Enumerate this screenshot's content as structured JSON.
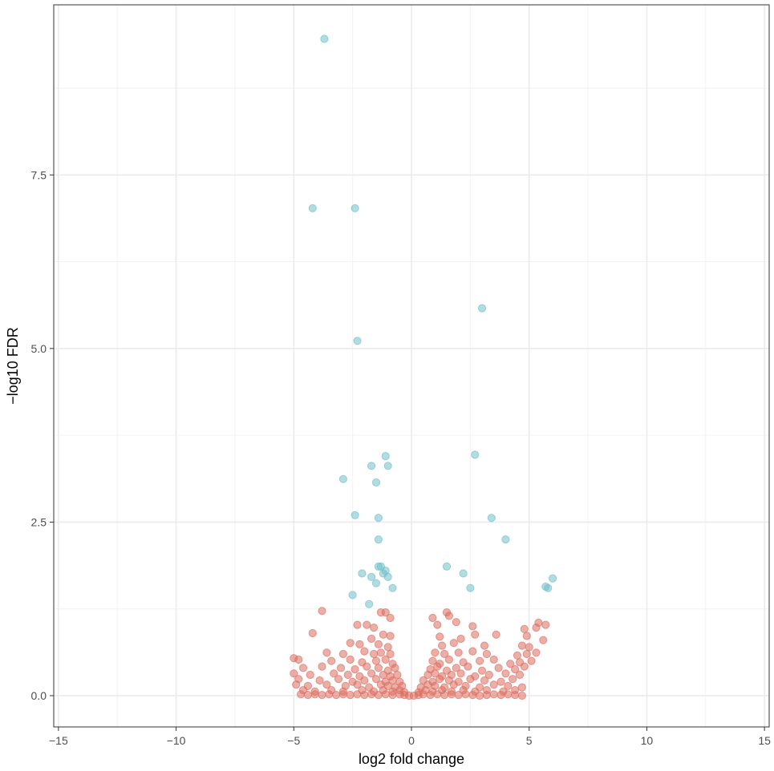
{
  "chart_data": {
    "type": "scatter",
    "title": "",
    "xlabel": "log2 fold change",
    "ylabel": "−log10 FDR",
    "xlim": [
      -15.2,
      15.2
    ],
    "ylim": [
      -0.45,
      9.95
    ],
    "xticks": [
      -15,
      -10,
      -5,
      0,
      5,
      10,
      15
    ],
    "xtick_labels": [
      "−15",
      "−10",
      "−5",
      "0",
      "5",
      "10",
      "15"
    ],
    "yticks": [
      0.0,
      2.5,
      5.0,
      7.5
    ],
    "ytick_labels": [
      "0.0",
      "2.5",
      "5.0",
      "7.5"
    ],
    "grid": true,
    "legend": "none",
    "colors": {
      "significant": "#6fbfca",
      "not_significant": "#dc6d5f"
    },
    "series": [
      {
        "color": "#6fbfca",
        "points": [
          [
            -3.7,
            9.46
          ],
          [
            -4.2,
            7.02
          ],
          [
            -2.4,
            7.02
          ],
          [
            3.0,
            5.58
          ],
          [
            -2.3,
            5.11
          ],
          [
            -1.1,
            3.45
          ],
          [
            2.7,
            3.47
          ],
          [
            -1.7,
            3.31
          ],
          [
            -1.0,
            3.31
          ],
          [
            -2.9,
            3.12
          ],
          [
            -1.5,
            3.07
          ],
          [
            -2.4,
            2.6
          ],
          [
            -1.4,
            2.56
          ],
          [
            3.4,
            2.56
          ],
          [
            4.0,
            2.25
          ],
          [
            -1.4,
            2.25
          ],
          [
            -1.3,
            1.86
          ],
          [
            -1.4,
            1.86
          ],
          [
            1.5,
            1.86
          ],
          [
            -1.1,
            1.8
          ],
          [
            -2.1,
            1.76
          ],
          [
            -1.2,
            1.76
          ],
          [
            -1.7,
            1.71
          ],
          [
            -1.0,
            1.71
          ],
          [
            2.2,
            1.76
          ],
          [
            6.0,
            1.69
          ],
          [
            -1.5,
            1.62
          ],
          [
            5.7,
            1.57
          ],
          [
            5.8,
            1.55
          ],
          [
            -0.8,
            1.55
          ],
          [
            2.5,
            1.55
          ],
          [
            -2.5,
            1.45
          ],
          [
            -1.8,
            1.32
          ]
        ]
      },
      {
        "color": "#dc6d5f",
        "points": [
          [
            -3.8,
            1.22
          ],
          [
            -1.3,
            1.2
          ],
          [
            -1.1,
            1.2
          ],
          [
            1.5,
            1.2
          ],
          [
            -0.9,
            1.12
          ],
          [
            1.6,
            1.15
          ],
          [
            -2.3,
            1.02
          ],
          [
            -1.9,
            1.02
          ],
          [
            -1.6,
            0.98
          ],
          [
            1.9,
            1.06
          ],
          [
            5.4,
            1.05
          ],
          [
            5.7,
            1.02
          ],
          [
            0.9,
            1.12
          ],
          [
            1.1,
            1.02
          ],
          [
            2.6,
            1.0
          ],
          [
            5.3,
            0.98
          ],
          [
            4.8,
            0.96
          ],
          [
            -4.2,
            0.9
          ],
          [
            -1.2,
            0.88
          ],
          [
            -0.9,
            0.86
          ],
          [
            2.7,
            0.88
          ],
          [
            3.6,
            0.88
          ],
          [
            -1.7,
            0.82
          ],
          [
            1.2,
            0.85
          ],
          [
            2.1,
            0.82
          ],
          [
            5.6,
            0.8
          ],
          [
            4.9,
            0.86
          ],
          [
            -2.6,
            0.76
          ],
          [
            -2.2,
            0.74
          ],
          [
            -1.4,
            0.74
          ],
          [
            -1.0,
            0.7
          ],
          [
            1.3,
            0.72
          ],
          [
            1.8,
            0.76
          ],
          [
            3.1,
            0.72
          ],
          [
            4.7,
            0.72
          ],
          [
            5.0,
            0.7
          ],
          [
            -3.6,
            0.62
          ],
          [
            -2.9,
            0.6
          ],
          [
            -2.0,
            0.64
          ],
          [
            -1.6,
            0.6
          ],
          [
            -1.3,
            0.62
          ],
          [
            -0.9,
            0.6
          ],
          [
            1.0,
            0.62
          ],
          [
            1.4,
            0.6
          ],
          [
            2.0,
            0.62
          ],
          [
            2.6,
            0.64
          ],
          [
            3.2,
            0.6
          ],
          [
            4.5,
            0.58
          ],
          [
            4.9,
            0.6
          ],
          [
            5.3,
            0.62
          ],
          [
            -5.0,
            0.54
          ],
          [
            -4.8,
            0.52
          ],
          [
            -3.4,
            0.5
          ],
          [
            -2.6,
            0.52
          ],
          [
            -2.1,
            0.48
          ],
          [
            -1.5,
            0.5
          ],
          [
            -1.1,
            0.52
          ],
          [
            -0.8,
            0.46
          ],
          [
            0.9,
            0.5
          ],
          [
            1.2,
            0.46
          ],
          [
            1.6,
            0.52
          ],
          [
            2.2,
            0.48
          ],
          [
            2.9,
            0.5
          ],
          [
            3.5,
            0.52
          ],
          [
            4.2,
            0.46
          ],
          [
            4.6,
            0.48
          ],
          [
            5.1,
            0.5
          ],
          [
            -4.6,
            0.4
          ],
          [
            -3.8,
            0.42
          ],
          [
            -3.0,
            0.4
          ],
          [
            -2.4,
            0.38
          ],
          [
            -1.9,
            0.42
          ],
          [
            -1.4,
            0.4
          ],
          [
            -1.0,
            0.36
          ],
          [
            -0.7,
            0.4
          ],
          [
            0.8,
            0.38
          ],
          [
            1.1,
            0.42
          ],
          [
            1.5,
            0.36
          ],
          [
            1.9,
            0.4
          ],
          [
            2.4,
            0.42
          ],
          [
            3.0,
            0.36
          ],
          [
            3.7,
            0.4
          ],
          [
            4.4,
            0.38
          ],
          [
            4.8,
            0.42
          ],
          [
            -5.0,
            0.32
          ],
          [
            -4.3,
            0.3
          ],
          [
            -3.3,
            0.32
          ],
          [
            -2.7,
            0.3
          ],
          [
            -2.2,
            0.28
          ],
          [
            -1.7,
            0.32
          ],
          [
            -1.2,
            0.3
          ],
          [
            -0.9,
            0.28
          ],
          [
            -0.6,
            0.3
          ],
          [
            0.7,
            0.3
          ],
          [
            1.0,
            0.32
          ],
          [
            1.3,
            0.28
          ],
          [
            1.7,
            0.3
          ],
          [
            2.1,
            0.32
          ],
          [
            2.7,
            0.28
          ],
          [
            3.3,
            0.3
          ],
          [
            4.0,
            0.32
          ],
          [
            4.6,
            0.3
          ],
          [
            -4.8,
            0.24
          ],
          [
            -3.9,
            0.22
          ],
          [
            -3.1,
            0.24
          ],
          [
            -2.5,
            0.2
          ],
          [
            -2.0,
            0.22
          ],
          [
            -1.5,
            0.24
          ],
          [
            -1.1,
            0.2
          ],
          [
            -0.8,
            0.22
          ],
          [
            -0.5,
            0.2
          ],
          [
            0.5,
            0.22
          ],
          [
            0.9,
            0.2
          ],
          [
            1.2,
            0.24
          ],
          [
            1.6,
            0.22
          ],
          [
            2.0,
            0.2
          ],
          [
            2.5,
            0.24
          ],
          [
            3.1,
            0.22
          ],
          [
            3.8,
            0.2
          ],
          [
            4.3,
            0.24
          ],
          [
            -4.9,
            0.16
          ],
          [
            -4.4,
            0.14
          ],
          [
            -3.6,
            0.16
          ],
          [
            -2.8,
            0.14
          ],
          [
            -2.3,
            0.16
          ],
          [
            -1.8,
            0.12
          ],
          [
            -1.3,
            0.16
          ],
          [
            -1.0,
            0.14
          ],
          [
            -0.7,
            0.12
          ],
          [
            -0.4,
            0.14
          ],
          [
            0.4,
            0.12
          ],
          [
            0.7,
            0.16
          ],
          [
            1.0,
            0.14
          ],
          [
            1.4,
            0.12
          ],
          [
            1.8,
            0.16
          ],
          [
            2.3,
            0.14
          ],
          [
            2.9,
            0.12
          ],
          [
            3.5,
            0.16
          ],
          [
            4.1,
            0.14
          ],
          [
            4.7,
            0.12
          ],
          [
            -4.6,
            0.08
          ],
          [
            -4.1,
            0.06
          ],
          [
            -3.4,
            0.08
          ],
          [
            -2.9,
            0.06
          ],
          [
            -2.1,
            0.08
          ],
          [
            -1.6,
            0.06
          ],
          [
            -1.2,
            0.08
          ],
          [
            -0.8,
            0.06
          ],
          [
            -0.5,
            0.08
          ],
          [
            -0.3,
            0.05
          ],
          [
            0.3,
            0.05
          ],
          [
            0.6,
            0.08
          ],
          [
            0.9,
            0.06
          ],
          [
            1.3,
            0.08
          ],
          [
            1.7,
            0.06
          ],
          [
            2.2,
            0.08
          ],
          [
            2.7,
            0.06
          ],
          [
            3.2,
            0.08
          ],
          [
            3.9,
            0.06
          ],
          [
            4.4,
            0.08
          ],
          [
            -4.7,
            0.02
          ],
          [
            -4.4,
            0.01
          ],
          [
            -4.1,
            0.02
          ],
          [
            -3.8,
            0.01
          ],
          [
            -3.5,
            0.02
          ],
          [
            -3.2,
            0.01
          ],
          [
            -2.9,
            0.02
          ],
          [
            -2.6,
            0.01
          ],
          [
            -2.3,
            0.02
          ],
          [
            -2.0,
            0.01
          ],
          [
            -1.7,
            0.02
          ],
          [
            -1.4,
            0.01
          ],
          [
            -1.1,
            0.02
          ],
          [
            -0.8,
            0.01
          ],
          [
            -0.5,
            0.02
          ],
          [
            -0.3,
            0.01
          ],
          [
            -0.1,
            0.0
          ],
          [
            0.1,
            0.0
          ],
          [
            0.3,
            0.01
          ],
          [
            0.5,
            0.02
          ],
          [
            0.8,
            0.01
          ],
          [
            1.1,
            0.02
          ],
          [
            1.4,
            0.01
          ],
          [
            1.7,
            0.02
          ],
          [
            2.0,
            0.01
          ],
          [
            2.3,
            0.02
          ],
          [
            2.6,
            0.01
          ],
          [
            2.9,
            0.0
          ],
          [
            3.2,
            0.01
          ],
          [
            3.5,
            0.02
          ],
          [
            3.8,
            0.01
          ],
          [
            4.1,
            0.02
          ],
          [
            4.4,
            0.01
          ],
          [
            4.7,
            0.0
          ]
        ]
      }
    ]
  }
}
